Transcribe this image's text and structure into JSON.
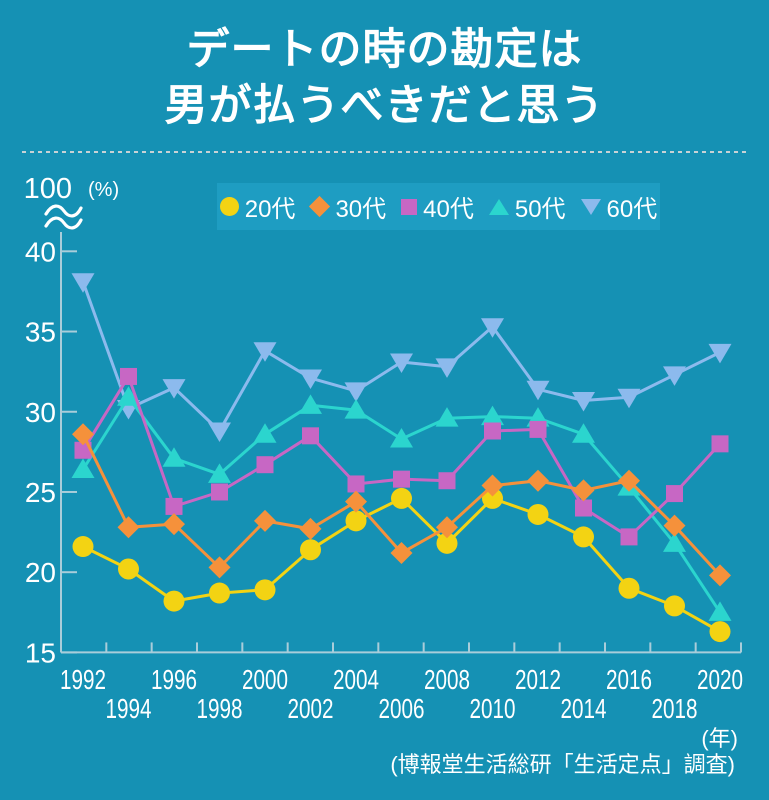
{
  "header": {
    "title_line1": "デートの時の勘定は",
    "title_line2": "男が払うべきだと思う"
  },
  "colors": {
    "background": "#1591B4",
    "legend_background": "#1E9DC2",
    "axis": "#A9CDDA",
    "text": "#FFFFFF"
  },
  "legend": {
    "items": [
      {
        "id": "20s",
        "label": "20代",
        "shape": "circle",
        "color": "#F3D313"
      },
      {
        "id": "30s",
        "label": "30代",
        "shape": "diamond",
        "color": "#F5913B"
      },
      {
        "id": "40s",
        "label": "40代",
        "shape": "square",
        "color": "#C767C4"
      },
      {
        "id": "50s",
        "label": "50代",
        "shape": "triangle-up",
        "color": "#2BD5CE"
      },
      {
        "id": "60s",
        "label": "60代",
        "shape": "triangle-down",
        "color": "#8CBAED"
      }
    ]
  },
  "chart_data": {
    "type": "line",
    "title": "デートの時の勘定は男が払うべきだと思う",
    "x_unit": "(年)",
    "y_unit": "(%)",
    "y_axis_break_top_label": "100",
    "ylim": [
      15,
      40
    ],
    "yticks": [
      15,
      20,
      25,
      30,
      35,
      40
    ],
    "grid": false,
    "legend_position": "top",
    "x": [
      1992,
      1994,
      1996,
      1998,
      2000,
      2002,
      2004,
      2006,
      2008,
      2010,
      2012,
      2014,
      2016,
      2018,
      2020
    ],
    "series": [
      {
        "id": "20s",
        "name": "20代",
        "color": "#F3D313",
        "marker": "circle",
        "values": [
          21.6,
          20.2,
          18.2,
          18.7,
          18.9,
          21.4,
          23.2,
          24.6,
          21.8,
          24.6,
          23.6,
          22.2,
          19.0,
          17.9,
          16.3
        ]
      },
      {
        "id": "30s",
        "name": "30代",
        "color": "#F5913B",
        "marker": "diamond",
        "values": [
          28.6,
          22.8,
          23.0,
          20.3,
          23.2,
          22.7,
          24.4,
          21.2,
          22.8,
          25.4,
          25.7,
          25.1,
          25.7,
          22.9,
          19.8
        ]
      },
      {
        "id": "40s",
        "name": "40代",
        "color": "#C767C4",
        "marker": "square",
        "values": [
          27.6,
          32.2,
          24.1,
          25.0,
          26.7,
          28.5,
          25.5,
          25.8,
          25.7,
          28.8,
          28.9,
          24.0,
          22.2,
          24.9,
          28.0
        ]
      },
      {
        "id": "50s",
        "name": "50代",
        "color": "#2BD5CE",
        "marker": "triangle-up",
        "values": [
          26.4,
          30.9,
          27.1,
          26.1,
          28.6,
          30.4,
          30.1,
          28.3,
          29.6,
          29.7,
          29.6,
          28.6,
          25.3,
          21.8,
          17.5
        ]
      },
      {
        "id": "60s",
        "name": "60代",
        "color": "#8CBAED",
        "marker": "triangle-down",
        "values": [
          38.1,
          30.2,
          31.5,
          28.8,
          33.8,
          32.1,
          31.3,
          33.1,
          32.8,
          35.3,
          31.4,
          30.7,
          30.9,
          32.3,
          33.7
        ]
      }
    ],
    "source": "(博報堂生活総研「生活定点」調査)"
  }
}
